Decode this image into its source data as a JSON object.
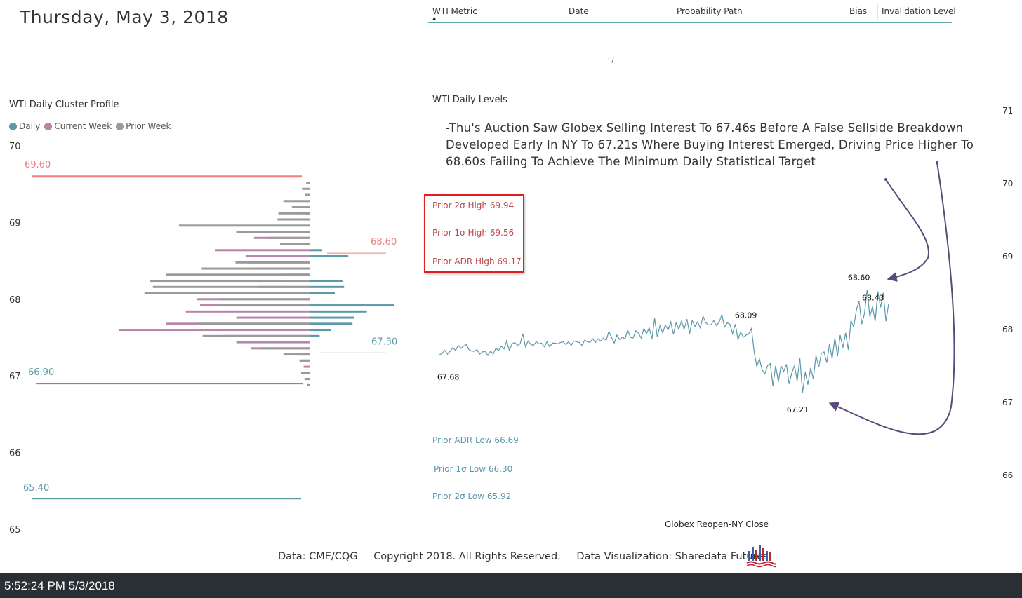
{
  "page": {
    "date_title": "Thursday, May 3, 2018",
    "stray_mark": "' /"
  },
  "table": {
    "columns": [
      "WTI Metric",
      "Date",
      "Probability Path",
      "Bias",
      "Invalidation Level"
    ],
    "sort_indicator": "▲"
  },
  "cluster_profile": {
    "title": "WTI Daily Cluster Profile",
    "legend": [
      {
        "label": "Daily",
        "color": "#5b98a8"
      },
      {
        "label": "Current Week",
        "color": "#b784ab"
      },
      {
        "label": "Prior Week",
        "color": "#9a9a9a"
      }
    ]
  },
  "daily_levels": {
    "title": "WTI Daily Levels",
    "note": "-Thu's Auction Saw Globex Selling Interest To 67.46s Before A False Sellside Breakdown Developed Early In NY To 67.21s Where Buying Interest Emerged, Driving Price Higher To 68.60s Failing To Achieve The Minimum Daily Statistical Target",
    "prior_highs": [
      "Prior 2σ High 69.94",
      "Prior 1σ High 69.56",
      "Prior ADR High 69.17"
    ],
    "prior_lows": [
      "Prior ADR Low 66.69",
      "Prior 1σ Low 66.30",
      "Prior 2σ Low 65.92"
    ],
    "x_label": "Globex Reopen-NY Close"
  },
  "footer": {
    "data_source": "Data: CME/CQG",
    "copyright": "Copyright 2018. All Rights Reserved.",
    "credit": "Data Visualization: Sharedata Futures",
    "logo_icon": "sharedata-logo-icon"
  },
  "status_bar": {
    "timestamp": "5:52:24 PM 5/3/2018"
  },
  "chart_data": [
    {
      "type": "bar",
      "orientation": "horizontal",
      "title": "WTI Daily Cluster Profile",
      "ylim": [
        65,
        70
      ],
      "y_ticks": [
        70,
        69,
        68,
        67,
        66,
        65
      ],
      "levels": [
        {
          "value": 69.6,
          "label": "69.60",
          "color": "#f07f7f"
        },
        {
          "value": 68.6,
          "label": "68.60",
          "color": "#f07f7f"
        },
        {
          "value": 67.3,
          "label": "67.30",
          "color": "#5b98a8"
        },
        {
          "value": 66.9,
          "label": "66.90",
          "color": "#5b98a8"
        },
        {
          "value": 65.4,
          "label": "65.40",
          "color": "#5b98a8"
        }
      ],
      "series": [
        {
          "name": "Daily",
          "color": "#5b98a8",
          "points": [
            {
              "price": 68.64,
              "volume": 1.5
            },
            {
              "price": 68.56,
              "volume": 4.6
            },
            {
              "price": 68.24,
              "volume": 3.9
            },
            {
              "price": 68.16,
              "volume": 4.1
            },
            {
              "price": 68.08,
              "volume": 3.0
            },
            {
              "price": 67.92,
              "volume": 10.0
            },
            {
              "price": 67.84,
              "volume": 6.8
            },
            {
              "price": 67.76,
              "volume": 5.3
            },
            {
              "price": 67.68,
              "volume": 5.1
            },
            {
              "price": 67.6,
              "volume": 2.5
            },
            {
              "price": 67.52,
              "volume": 1.2
            }
          ]
        },
        {
          "name": "Current Week",
          "color": "#b784ab",
          "points": [
            {
              "price": 69.12,
              "volume": 0.6
            },
            {
              "price": 68.88,
              "volume": 0.6
            },
            {
              "price": 68.8,
              "volume": 6.6
            },
            {
              "price": 68.72,
              "volume": 3.5
            },
            {
              "price": 68.64,
              "volume": 11.2
            },
            {
              "price": 68.56,
              "volume": 7.6
            },
            {
              "price": 68.48,
              "volume": 7.4
            },
            {
              "price": 68.4,
              "volume": 6.7
            },
            {
              "price": 68.32,
              "volume": 3.3
            },
            {
              "price": 68.24,
              "volume": 2.8
            },
            {
              "price": 68.16,
              "volume": 6.0
            },
            {
              "price": 68.08,
              "volume": 6.8
            },
            {
              "price": 68.0,
              "volume": 13.4
            },
            {
              "price": 67.92,
              "volume": 13.0
            },
            {
              "price": 67.84,
              "volume": 14.7
            },
            {
              "price": 67.76,
              "volume": 8.7
            },
            {
              "price": 67.68,
              "volume": 17.0
            },
            {
              "price": 67.6,
              "volume": 22.6
            },
            {
              "price": 67.52,
              "volume": 10.3
            },
            {
              "price": 67.44,
              "volume": 8.7
            },
            {
              "price": 67.36,
              "volume": 7.0
            },
            {
              "price": 67.28,
              "volume": 1.3
            },
            {
              "price": 67.2,
              "volume": 1.1
            },
            {
              "price": 67.12,
              "volume": 0.7
            },
            {
              "price": 67.04,
              "volume": 0.4
            },
            {
              "price": 66.96,
              "volume": 0.4
            },
            {
              "price": 66.88,
              "volume": 0.3
            }
          ]
        },
        {
          "name": "Prior Week",
          "color": "#9a9a9a",
          "points": [
            {
              "price": 69.52,
              "volume": 0.4
            },
            {
              "price": 69.44,
              "volume": 0.9
            },
            {
              "price": 69.36,
              "volume": 0.5
            },
            {
              "price": 69.28,
              "volume": 3.1
            },
            {
              "price": 69.2,
              "volume": 2.1
            },
            {
              "price": 69.12,
              "volume": 3.7
            },
            {
              "price": 69.04,
              "volume": 3.8
            },
            {
              "price": 68.96,
              "volume": 15.5
            },
            {
              "price": 68.88,
              "volume": 8.7
            },
            {
              "price": 68.8,
              "volume": 5.1
            },
            {
              "price": 68.72,
              "volume": 3.5
            },
            {
              "price": 68.48,
              "volume": 8.8
            },
            {
              "price": 68.4,
              "volume": 12.8
            },
            {
              "price": 68.32,
              "volume": 17.0
            },
            {
              "price": 68.24,
              "volume": 19.0
            },
            {
              "price": 68.16,
              "volume": 18.6
            },
            {
              "price": 68.08,
              "volume": 19.6
            },
            {
              "price": 68.0,
              "volume": 10.7
            },
            {
              "price": 67.92,
              "volume": 10.9
            },
            {
              "price": 67.68,
              "volume": 13.4
            },
            {
              "price": 67.52,
              "volume": 12.7
            },
            {
              "price": 67.36,
              "volume": 5.8
            },
            {
              "price": 67.28,
              "volume": 3.1
            },
            {
              "price": 67.2,
              "volume": 1.2
            },
            {
              "price": 67.04,
              "volume": 1.0
            },
            {
              "price": 66.96,
              "volume": 0.6
            }
          ]
        }
      ]
    },
    {
      "type": "line",
      "title": "WTI Daily Levels",
      "xlabel": "Globex Reopen-NY Close",
      "ylim": [
        65.8,
        71.1
      ],
      "y_ticks": [
        71,
        70,
        69,
        68,
        67,
        66
      ],
      "annotations": [
        {
          "label": "67.68",
          "value": 67.68,
          "index": 1
        },
        {
          "label": "68.09",
          "value": 68.09,
          "index": 114
        },
        {
          "label": "67.21",
          "value": 67.21,
          "index": 133
        },
        {
          "label": "68.60",
          "value": 68.6,
          "index": 156
        },
        {
          "label": "68.43",
          "value": 68.43,
          "index": 161
        }
      ],
      "values": [
        67.73,
        67.75,
        67.79,
        67.74,
        67.78,
        67.83,
        67.79,
        67.86,
        67.82,
        67.85,
        67.87,
        67.8,
        67.78,
        67.78,
        67.8,
        67.74,
        67.77,
        67.78,
        67.72,
        67.78,
        67.74,
        67.82,
        67.79,
        67.85,
        67.81,
        67.92,
        67.79,
        67.88,
        67.9,
        67.86,
        67.88,
        68.02,
        67.84,
        67.92,
        67.87,
        67.86,
        67.91,
        67.88,
        67.89,
        67.84,
        67.91,
        67.84,
        67.89,
        67.89,
        67.88,
        67.9,
        67.91,
        67.87,
        67.91,
        67.86,
        67.92,
        67.91,
        67.9,
        67.86,
        67.93,
        67.91,
        67.9,
        67.95,
        67.9,
        67.95,
        67.92,
        67.96,
        67.93,
        68.05,
        67.97,
        67.89,
        68.0,
        67.94,
        67.97,
        67.95,
        68.07,
        67.97,
        67.96,
        68.06,
        68.03,
        67.96,
        68.09,
        68.02,
        68.1,
        67.95,
        68.23,
        67.98,
        68.13,
        68.03,
        68.14,
        68.07,
        68.18,
        68.01,
        68.17,
        68.08,
        68.19,
        68.08,
        68.22,
        68.02,
        68.2,
        68.12,
        68.18,
        68.1,
        68.26,
        68.17,
        68.14,
        68.14,
        68.2,
        68.13,
        68.18,
        68.28,
        68.11,
        68.17,
        68.15,
        68.02,
        68.15,
        67.94,
        68.04,
        67.97,
        68.0,
        68.02,
        68.09,
        67.77,
        67.57,
        67.67,
        67.52,
        67.47,
        67.58,
        67.61,
        67.3,
        67.58,
        67.36,
        67.58,
        67.5,
        67.6,
        67.33,
        67.48,
        67.58,
        67.37,
        67.69,
        67.21,
        67.49,
        67.32,
        67.55,
        67.4,
        67.72,
        67.56,
        67.75,
        67.77,
        67.62,
        67.88,
        67.68,
        67.96,
        67.71,
        68.0,
        67.83,
        68.03,
        67.8,
        68.2,
        68.11,
        68.34,
        68.47,
        68.15,
        68.29,
        68.62,
        68.25,
        68.39,
        68.19,
        68.6,
        68.38,
        68.58,
        68.19,
        68.43
      ]
    }
  ]
}
